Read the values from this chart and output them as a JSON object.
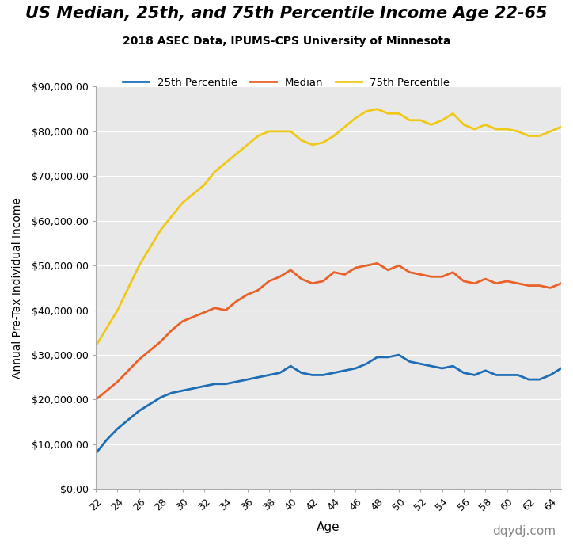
{
  "title": "US Median, 25th, and 75th Percentile Income Age 22-65",
  "subtitle": "2018 ASEC Data, IPUMS-CPS University of Minnesota",
  "xlabel": "Age",
  "ylabel": "Annual Pre-Tax Individual Income",
  "watermark": "dqydj.com",
  "fig_bg": "#ffffff",
  "plot_bg": "#e8e8e8",
  "ages": [
    22,
    23,
    24,
    25,
    26,
    27,
    28,
    29,
    30,
    31,
    32,
    33,
    34,
    35,
    36,
    37,
    38,
    39,
    40,
    41,
    42,
    43,
    44,
    45,
    46,
    47,
    48,
    49,
    50,
    51,
    52,
    53,
    54,
    55,
    56,
    57,
    58,
    59,
    60,
    61,
    62,
    63,
    64,
    65
  ],
  "p25": [
    8000,
    11000,
    13500,
    15500,
    17500,
    19000,
    20500,
    21500,
    22000,
    22500,
    23000,
    23500,
    23500,
    24000,
    24500,
    25000,
    25500,
    26000,
    27500,
    26000,
    25500,
    25500,
    26000,
    26500,
    27000,
    28000,
    29500,
    29500,
    30000,
    28500,
    28000,
    27500,
    27000,
    27500,
    26000,
    25500,
    26500,
    25500,
    25500,
    25500,
    24500,
    24500,
    25500,
    27000
  ],
  "median": [
    20000,
    22000,
    24000,
    26500,
    29000,
    31000,
    33000,
    35500,
    37500,
    38500,
    39500,
    40500,
    40000,
    42000,
    43500,
    44500,
    46500,
    47500,
    49000,
    47000,
    46000,
    46500,
    48500,
    48000,
    49500,
    50000,
    50500,
    49000,
    50000,
    48500,
    48000,
    47500,
    47500,
    48500,
    46500,
    46000,
    47000,
    46000,
    46500,
    46000,
    45500,
    45500,
    45000,
    46000
  ],
  "p75": [
    32000,
    36000,
    40000,
    45000,
    50000,
    54000,
    58000,
    61000,
    64000,
    66000,
    68000,
    71000,
    73000,
    75000,
    77000,
    79000,
    80000,
    80000,
    80000,
    78000,
    77000,
    77500,
    79000,
    81000,
    83000,
    84500,
    85000,
    84000,
    84000,
    82500,
    82500,
    81500,
    82500,
    84000,
    81500,
    80500,
    81500,
    80500,
    80500,
    80000,
    79000,
    79000,
    80000,
    81000
  ],
  "p25_color": "#1f6eb5",
  "median_color": "#e8622a",
  "p75_color": "#f0c918",
  "ylim": [
    0,
    90000
  ],
  "yticks": [
    0,
    10000,
    20000,
    30000,
    40000,
    50000,
    60000,
    70000,
    80000,
    90000
  ],
  "xticks": [
    22,
    24,
    26,
    28,
    30,
    32,
    34,
    36,
    38,
    40,
    42,
    44,
    46,
    48,
    50,
    52,
    54,
    56,
    58,
    60,
    62,
    64
  ]
}
